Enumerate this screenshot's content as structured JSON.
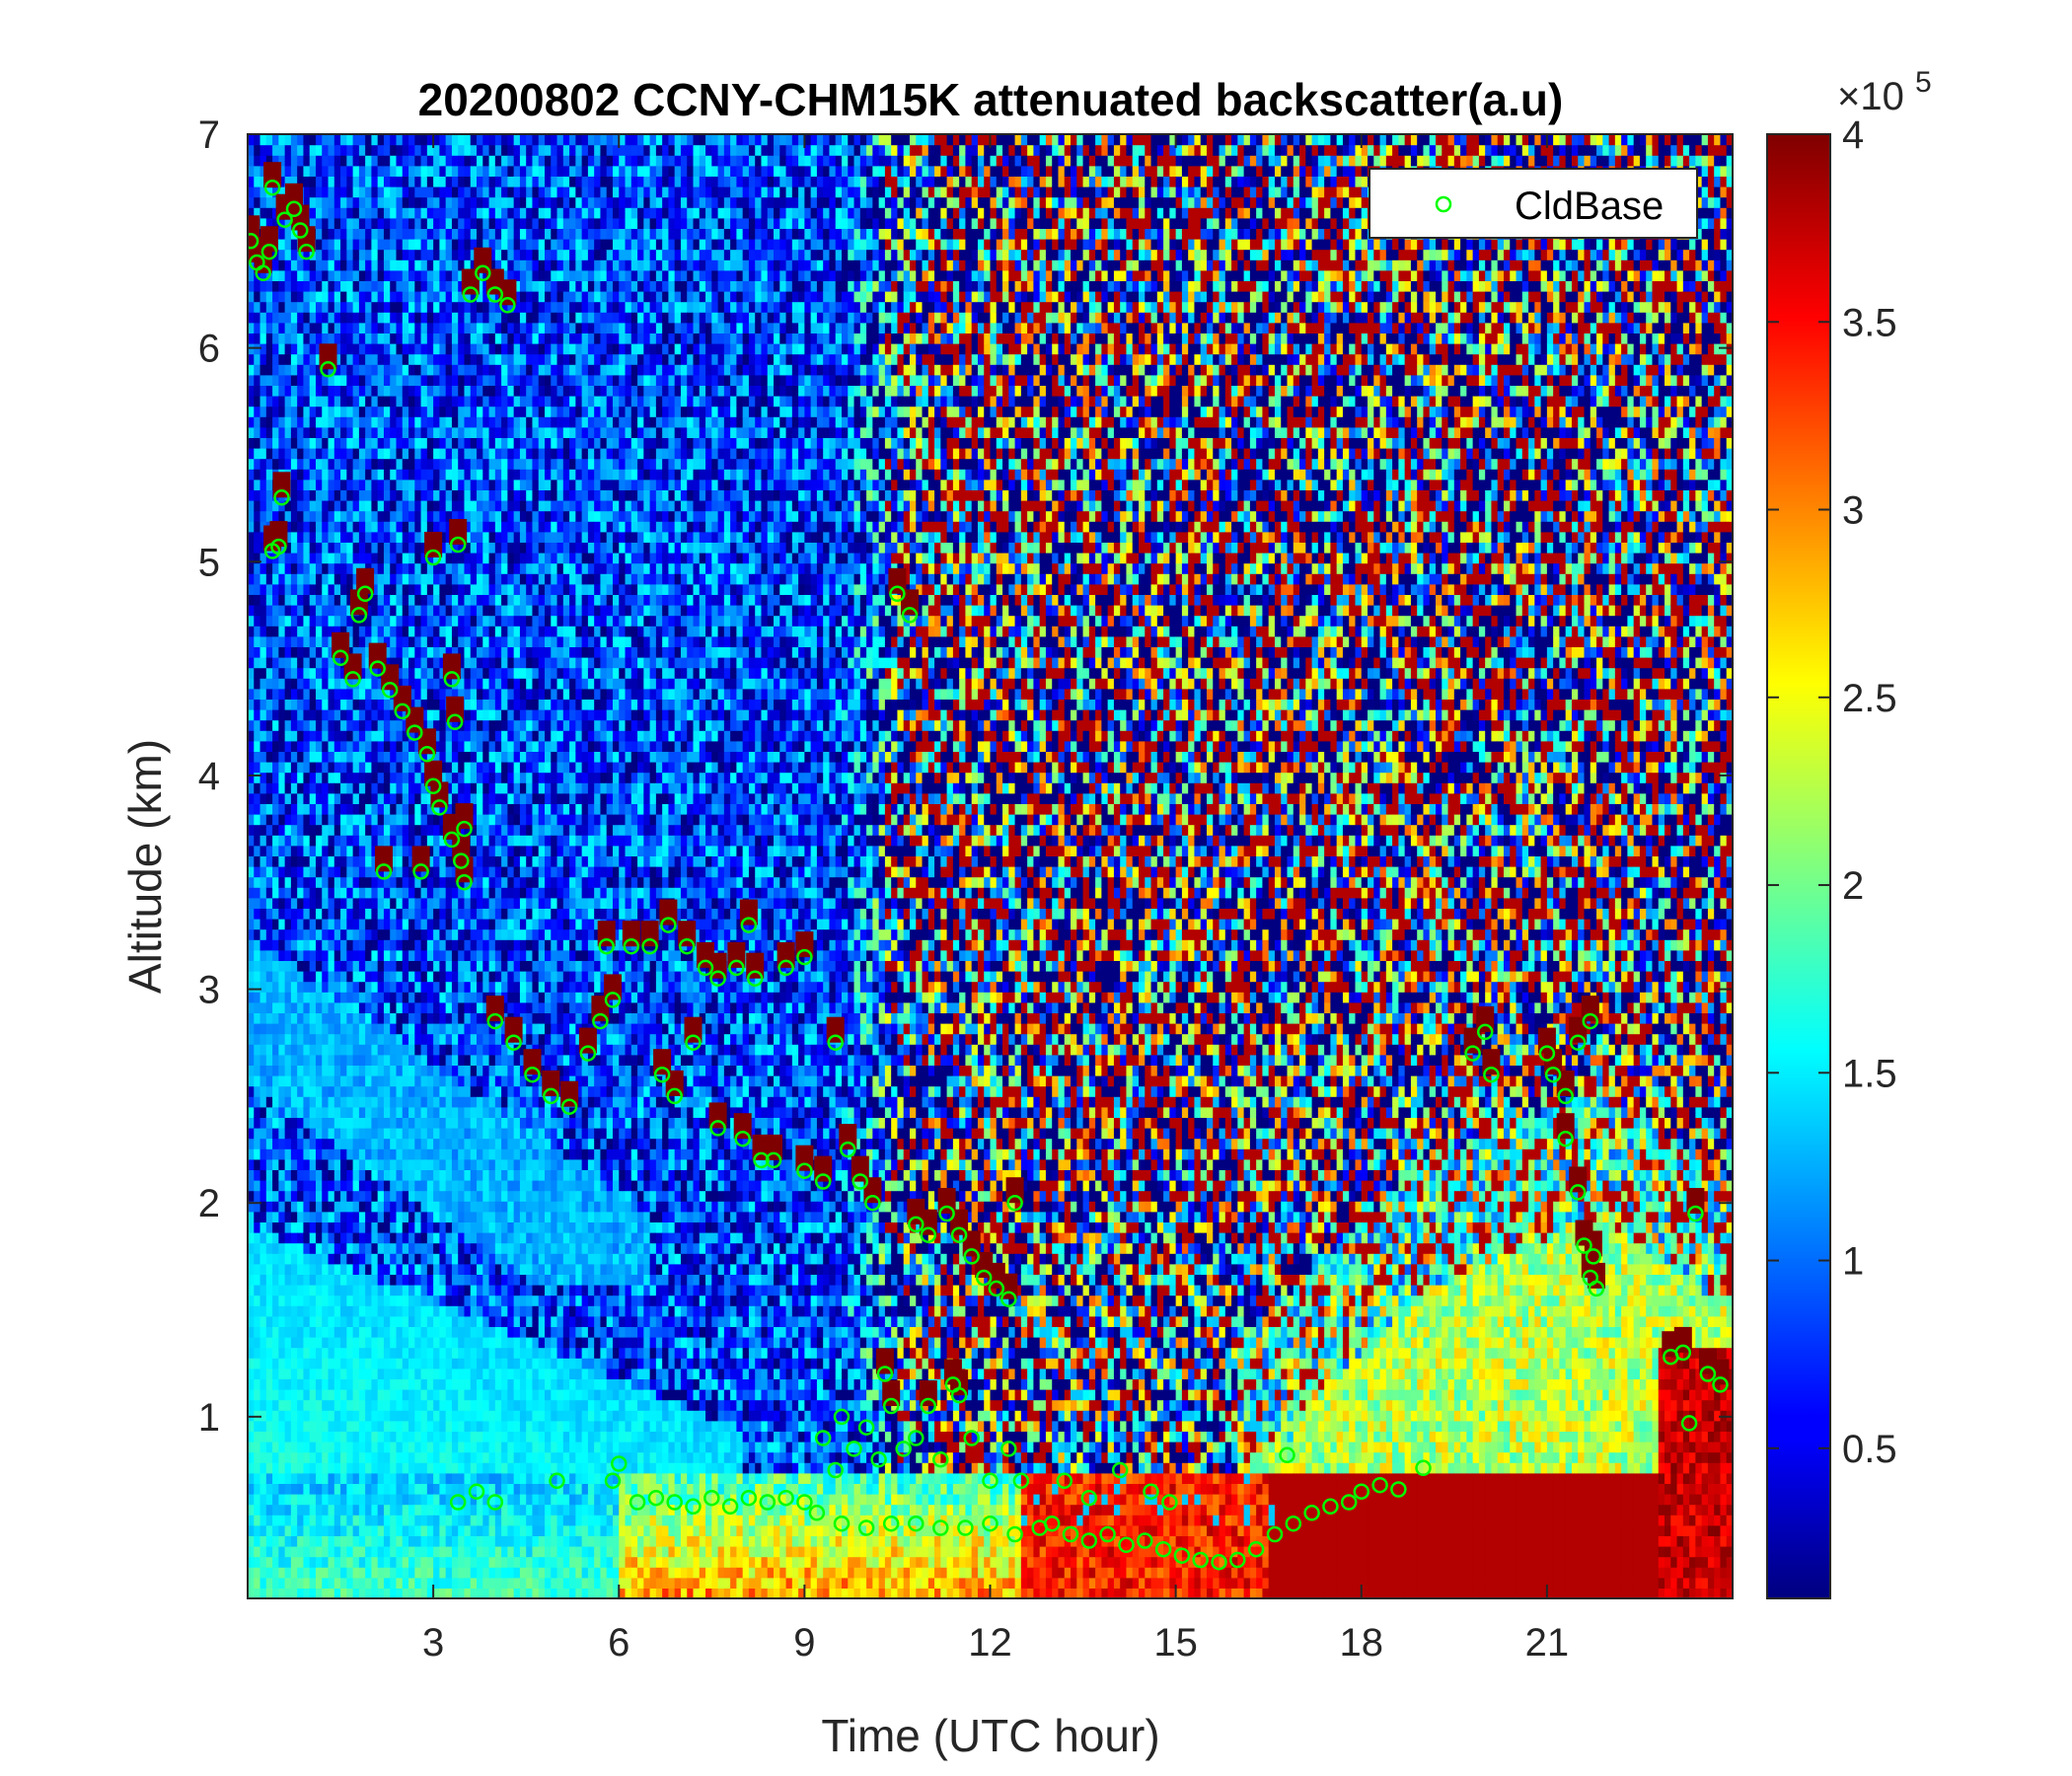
{
  "chart_data": {
    "type": "heatmap",
    "title": "20200802 CCNY-CHM15K attenuated backscatter(a.u)",
    "xlabel": "Time (UTC hour)",
    "ylabel": "Altitude (km)",
    "xlim": [
      0,
      24
    ],
    "ylim": [
      0.15,
      7
    ],
    "xticks": [
      3,
      6,
      9,
      12,
      15,
      18,
      21
    ],
    "yticks": [
      1,
      2,
      3,
      4,
      5,
      6,
      7
    ],
    "colormap": "jet",
    "colorbar": {
      "range": [
        0.1,
        4
      ],
      "ticks": [
        0.5,
        1,
        1.5,
        2,
        2.5,
        3,
        3.5,
        4
      ],
      "multiplier_base": "×10",
      "multiplier_exponent": "5"
    },
    "legend": {
      "location": "top-right",
      "entries": [
        "CldBase"
      ]
    },
    "series": [
      {
        "name": "CldBase",
        "marker": "circle",
        "color": "#00ff00",
        "points": [
          [
            0.05,
            6.5
          ],
          [
            0.15,
            6.4
          ],
          [
            0.25,
            6.35
          ],
          [
            0.35,
            6.45
          ],
          [
            0.6,
            6.6
          ],
          [
            0.75,
            6.65
          ],
          [
            0.85,
            6.55
          ],
          [
            0.95,
            6.45
          ],
          [
            0.4,
            6.75
          ],
          [
            1.3,
            5.9
          ],
          [
            0.55,
            5.3
          ],
          [
            0.4,
            5.05
          ],
          [
            0.5,
            5.07
          ],
          [
            1.5,
            4.55
          ],
          [
            1.7,
            4.45
          ],
          [
            1.8,
            4.75
          ],
          [
            1.9,
            4.85
          ],
          [
            2.1,
            4.5
          ],
          [
            2.3,
            4.4
          ],
          [
            2.5,
            4.3
          ],
          [
            2.7,
            4.2
          ],
          [
            2.9,
            4.1
          ],
          [
            3.0,
            3.95
          ],
          [
            3.1,
            3.85
          ],
          [
            3.3,
            3.7
          ],
          [
            3.5,
            3.75
          ],
          [
            3.45,
            3.6
          ],
          [
            2.2,
            3.55
          ],
          [
            2.8,
            3.55
          ],
          [
            3.5,
            3.5
          ],
          [
            3.3,
            4.45
          ],
          [
            3.35,
            4.25
          ],
          [
            3.0,
            5.02
          ],
          [
            3.4,
            5.08
          ],
          [
            3.6,
            6.25
          ],
          [
            3.8,
            6.35
          ],
          [
            4.0,
            6.25
          ],
          [
            4.2,
            6.2
          ],
          [
            4.0,
            2.85
          ],
          [
            4.3,
            2.75
          ],
          [
            4.6,
            2.6
          ],
          [
            4.9,
            2.5
          ],
          [
            5.2,
            2.45
          ],
          [
            5.5,
            2.7
          ],
          [
            5.7,
            2.85
          ],
          [
            5.9,
            2.95
          ],
          [
            5.8,
            3.2
          ],
          [
            6.2,
            3.2
          ],
          [
            6.5,
            3.2
          ],
          [
            6.8,
            3.3
          ],
          [
            7.1,
            3.2
          ],
          [
            7.4,
            3.1
          ],
          [
            7.6,
            3.05
          ],
          [
            7.9,
            3.1
          ],
          [
            8.1,
            3.3
          ],
          [
            8.2,
            3.05
          ],
          [
            6.7,
            2.6
          ],
          [
            6.9,
            2.5
          ],
          [
            7.2,
            2.75
          ],
          [
            7.6,
            2.35
          ],
          [
            8.0,
            2.3
          ],
          [
            8.3,
            2.2
          ],
          [
            8.5,
            2.2
          ],
          [
            8.7,
            3.1
          ],
          [
            9.0,
            3.15
          ],
          [
            9.5,
            2.75
          ],
          [
            9.0,
            2.15
          ],
          [
            9.3,
            2.1
          ],
          [
            9.7,
            2.25
          ],
          [
            9.9,
            2.1
          ],
          [
            10.1,
            2.0
          ],
          [
            10.5,
            4.85
          ],
          [
            10.7,
            4.75
          ],
          [
            10.8,
            1.9
          ],
          [
            11.0,
            1.85
          ],
          [
            11.3,
            1.95
          ],
          [
            11.5,
            1.85
          ],
          [
            11.7,
            1.75
          ],
          [
            11.9,
            1.65
          ],
          [
            12.1,
            1.6
          ],
          [
            12.3,
            1.55
          ],
          [
            12.4,
            2.0
          ],
          [
            19.8,
            2.7
          ],
          [
            20.0,
            2.8
          ],
          [
            20.1,
            2.6
          ],
          [
            21.0,
            2.7
          ],
          [
            21.1,
            2.6
          ],
          [
            21.3,
            2.5
          ],
          [
            21.5,
            2.75
          ],
          [
            21.7,
            2.85
          ],
          [
            21.3,
            2.3
          ],
          [
            21.5,
            2.05
          ],
          [
            21.6,
            1.8
          ],
          [
            21.7,
            1.65
          ],
          [
            21.8,
            1.6
          ],
          [
            21.75,
            1.75
          ],
          [
            23.4,
            1.95
          ],
          [
            23.6,
            1.2
          ],
          [
            23.8,
            1.15
          ],
          [
            23.2,
            1.3
          ],
          [
            23.0,
            1.28
          ],
          [
            23.3,
            0.97
          ],
          [
            3.4,
            0.6
          ],
          [
            3.7,
            0.65
          ],
          [
            4.0,
            0.6
          ],
          [
            5.0,
            0.7
          ],
          [
            5.9,
            0.7
          ],
          [
            6.0,
            0.78
          ],
          [
            6.3,
            0.6
          ],
          [
            6.6,
            0.62
          ],
          [
            6.9,
            0.6
          ],
          [
            7.2,
            0.58
          ],
          [
            7.5,
            0.62
          ],
          [
            7.8,
            0.58
          ],
          [
            8.1,
            0.62
          ],
          [
            8.4,
            0.6
          ],
          [
            8.7,
            0.62
          ],
          [
            9.0,
            0.6
          ],
          [
            9.3,
            0.9
          ],
          [
            9.5,
            0.75
          ],
          [
            9.6,
            1.0
          ],
          [
            9.8,
            0.85
          ],
          [
            10.0,
            0.95
          ],
          [
            10.2,
            0.8
          ],
          [
            10.4,
            1.05
          ],
          [
            10.6,
            0.85
          ],
          [
            10.8,
            0.9
          ],
          [
            11.0,
            1.05
          ],
          [
            11.2,
            0.8
          ],
          [
            11.5,
            1.1
          ],
          [
            11.7,
            0.9
          ],
          [
            12.0,
            0.7
          ],
          [
            12.3,
            0.85
          ],
          [
            12.5,
            0.7
          ],
          [
            10.3,
            1.2
          ],
          [
            11.4,
            1.15
          ],
          [
            9.2,
            0.55
          ],
          [
            9.6,
            0.5
          ],
          [
            10.0,
            0.48
          ],
          [
            10.4,
            0.5
          ],
          [
            10.8,
            0.5
          ],
          [
            11.2,
            0.48
          ],
          [
            11.6,
            0.48
          ],
          [
            12.0,
            0.5
          ],
          [
            12.4,
            0.45
          ],
          [
            12.8,
            0.48
          ],
          [
            13.0,
            0.5
          ],
          [
            13.3,
            0.45
          ],
          [
            13.6,
            0.42
          ],
          [
            13.9,
            0.45
          ],
          [
            14.2,
            0.4
          ],
          [
            14.5,
            0.42
          ],
          [
            14.8,
            0.38
          ],
          [
            15.1,
            0.35
          ],
          [
            15.4,
            0.33
          ],
          [
            15.7,
            0.32
          ],
          [
            16.0,
            0.33
          ],
          [
            16.3,
            0.38
          ],
          [
            16.6,
            0.45
          ],
          [
            16.9,
            0.5
          ],
          [
            17.2,
            0.55
          ],
          [
            17.5,
            0.58
          ],
          [
            17.8,
            0.6
          ],
          [
            18.0,
            0.65
          ],
          [
            18.3,
            0.68
          ],
          [
            18.6,
            0.66
          ],
          [
            13.2,
            0.7
          ],
          [
            13.6,
            0.62
          ],
          [
            14.1,
            0.75
          ],
          [
            14.6,
            0.65
          ],
          [
            14.9,
            0.6
          ],
          [
            16.8,
            0.82
          ],
          [
            19.0,
            0.76
          ]
        ]
      }
    ]
  }
}
